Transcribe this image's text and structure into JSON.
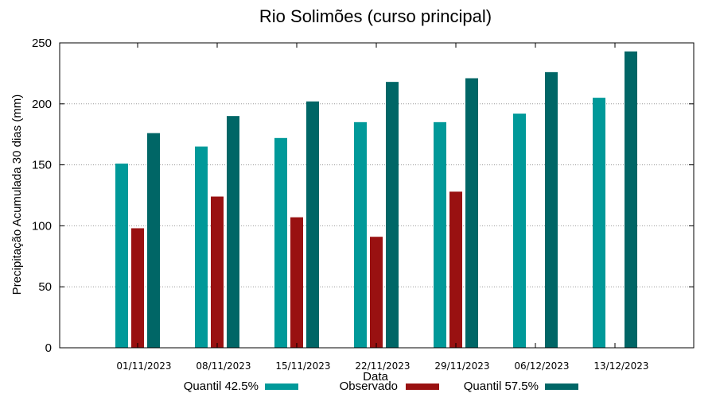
{
  "chart_data": {
    "type": "bar",
    "title": "Rio Solimões (curso principal)",
    "xlabel": "Data",
    "ylabel": "Precipitação Acumulada 30 dias (mm)",
    "ylim": [
      0,
      250
    ],
    "yticks": [
      0,
      50,
      100,
      150,
      200,
      250
    ],
    "grid": true,
    "legend_placement": "bottom",
    "categories": [
      "01/11/2023",
      "08/11/2023",
      "15/11/2023",
      "22/11/2023",
      "29/11/2023",
      "06/12/2023",
      "13/12/2023"
    ],
    "series": [
      {
        "name": "Quantil 42.5%",
        "color": "#009999",
        "values": [
          151,
          165,
          172,
          185,
          185,
          192,
          205
        ]
      },
      {
        "name": "Observado",
        "color": "#991111",
        "values": [
          98,
          124,
          107,
          91,
          128,
          null,
          null
        ]
      },
      {
        "name": "Quantil 57.5%",
        "color": "#006666",
        "values": [
          176,
          190,
          202,
          218,
          221,
          226,
          243
        ]
      }
    ]
  }
}
